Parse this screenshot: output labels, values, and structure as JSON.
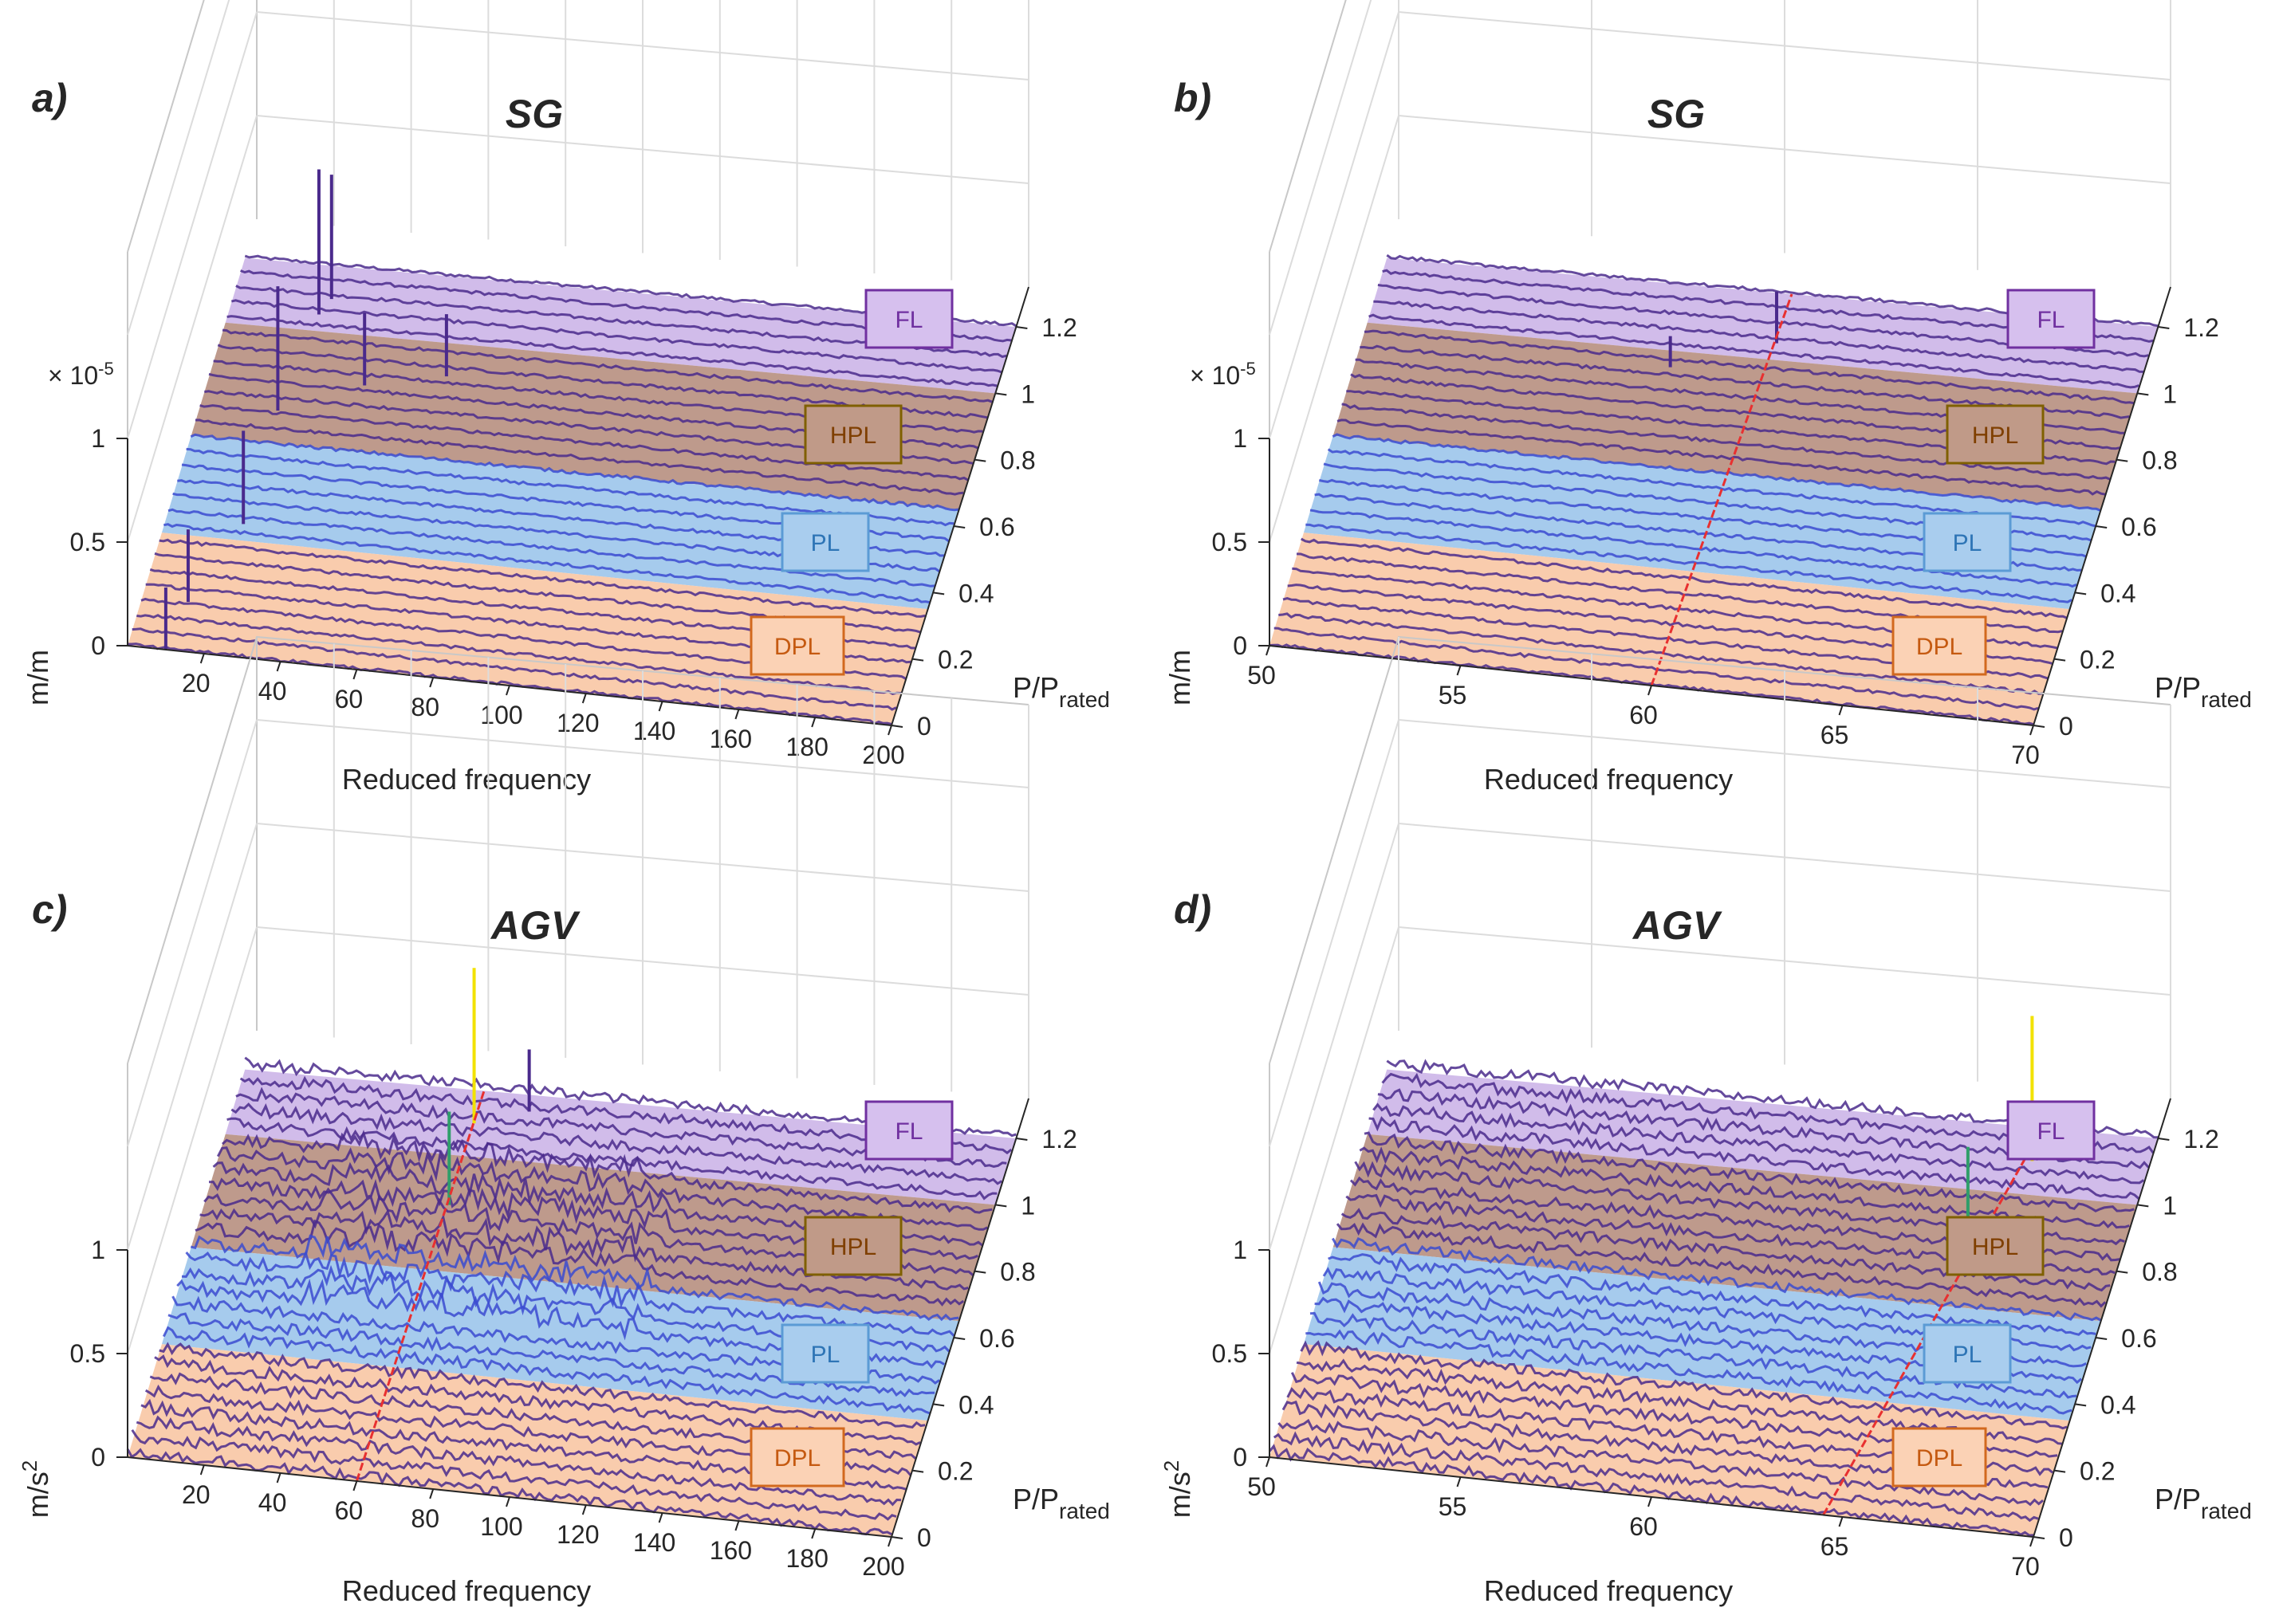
{
  "figure": {
    "panels": [
      {
        "letter": "a)",
        "title": "SG",
        "xrange": "full",
        "ytick_unit": "m/m",
        "exponent": "× 10",
        "exponent_power": "-5"
      },
      {
        "letter": "b)",
        "title": "SG",
        "xrange": "zoom",
        "ytick_unit": "m/m",
        "exponent": "× 10",
        "exponent_power": "-5"
      },
      {
        "letter": "c)",
        "title": "AGV",
        "xrange": "full",
        "ytick_unit": "m/s",
        "ytick_unit_power": "2",
        "exponent": "",
        "exponent_power": ""
      },
      {
        "letter": "d)",
        "title": "AGV",
        "xrange": "zoom",
        "ytick_unit": "m/s",
        "ytick_unit_power": "2",
        "exponent": "",
        "exponent_power": ""
      }
    ],
    "xlabel": "Reduced frequency",
    "ylabel_main": "P/P",
    "ylabel_sub": "rated",
    "x_ticks_full": [
      "20",
      "40",
      "60",
      "80",
      "100",
      "120",
      "140",
      "160",
      "180",
      "200"
    ],
    "x_ticks_zoom": [
      "50",
      "55",
      "60",
      "65",
      "70"
    ],
    "y_ticks": [
      "0",
      "0.2",
      "0.4",
      "0.6",
      "0.8",
      "1",
      "1.2"
    ],
    "z_ticks": [
      "0",
      "0.5",
      "1"
    ],
    "regions": [
      {
        "label": "DPL",
        "fill": "#f9c8a6",
        "edge": "#d2691e",
        "text": "#c55a11",
        "box_fill": "#fbd2b5"
      },
      {
        "label": "PL",
        "fill": "#9ec7ec",
        "edge": "#5b9bd5",
        "text": "#2e75b6",
        "box_fill": "#a9cdee"
      },
      {
        "label": "HPL",
        "fill": "#b89182",
        "edge": "#7f6000",
        "text": "#7f3f00",
        "box_fill": "#c09a88"
      },
      {
        "label": "FL",
        "fill": "#cdb6e8",
        "edge": "#7030a0",
        "text": "#7030a0",
        "box_fill": "#d6c0ee"
      }
    ],
    "colors": {
      "trace": "#4a2a8c",
      "trace_blue": "#3b4bd0",
      "red_line": "#e83030",
      "yellow_spike": "#f2e200",
      "green_spike": "#2f9e6a"
    }
  },
  "chart_data": [
    {
      "type": "waterfall",
      "title": "SG",
      "xlabel": "Reduced frequency",
      "ylabel": "P/Prated",
      "zlabel": "m/m",
      "xlim": [
        0,
        200
      ],
      "ylim": [
        0,
        1.2
      ],
      "zlim": [
        0,
        1
      ],
      "z_exponent": "x10^-5",
      "regions": [
        {
          "name": "DPL",
          "p_range": [
            0,
            0.35
          ]
        },
        {
          "name": "PL",
          "p_range": [
            0.35,
            0.65
          ]
        },
        {
          "name": "HPL",
          "p_range": [
            0.65,
            1.0
          ]
        },
        {
          "name": "FL",
          "p_range": [
            1.0,
            1.2
          ]
        }
      ],
      "notable_peaks": [
        {
          "reduced_frequency": 10,
          "p": 0.0,
          "amplitude": 0.3
        },
        {
          "reduced_frequency": 12,
          "p": 0.15,
          "amplitude": 0.35
        },
        {
          "reduced_frequency": 20,
          "p": 0.4,
          "amplitude": 0.45
        },
        {
          "reduced_frequency": 20,
          "p": 0.75,
          "amplitude": 0.6
        },
        {
          "reduced_frequency": 23,
          "p": 1.05,
          "amplitude": 0.7
        },
        {
          "reduced_frequency": 25,
          "p": 1.1,
          "amplitude": 0.6
        },
        {
          "reduced_frequency": 40,
          "p": 0.85,
          "amplitude": 0.35
        },
        {
          "reduced_frequency": 60,
          "p": 0.9,
          "amplitude": 0.3
        }
      ]
    },
    {
      "type": "waterfall",
      "title": "SG",
      "xlabel": "Reduced frequency",
      "ylabel": "P/Prated",
      "zlabel": "m/m",
      "xlim": [
        50,
        70
      ],
      "ylim": [
        0,
        1.2
      ],
      "zlim": [
        0,
        1
      ],
      "z_exponent": "x10^-5",
      "regions": [
        {
          "name": "DPL",
          "p_range": [
            0,
            0.35
          ]
        },
        {
          "name": "PL",
          "p_range": [
            0.35,
            0.65
          ]
        },
        {
          "name": "HPL",
          "p_range": [
            0.65,
            1.0
          ]
        },
        {
          "name": "FL",
          "p_range": [
            1.0,
            1.2
          ]
        }
      ],
      "red_line": {
        "from": [
          60,
          0
        ],
        "to": [
          60.5,
          1.2
        ]
      },
      "notable_peaks": [
        {
          "reduced_frequency": 60.5,
          "p": 1.05,
          "amplitude": 0.25
        },
        {
          "reduced_frequency": 58,
          "p": 0.95,
          "amplitude": 0.15
        }
      ]
    },
    {
      "type": "waterfall",
      "title": "AGV",
      "xlabel": "Reduced frequency",
      "ylabel": "P/Prated",
      "zlabel": "m/s2",
      "xlim": [
        0,
        200
      ],
      "ylim": [
        0,
        1.2
      ],
      "zlim": [
        0,
        1
      ],
      "regions": [
        {
          "name": "DPL",
          "p_range": [
            0,
            0.35
          ]
        },
        {
          "name": "PL",
          "p_range": [
            0.35,
            0.65
          ]
        },
        {
          "name": "HPL",
          "p_range": [
            0.65,
            1.0
          ]
        },
        {
          "name": "FL",
          "p_range": [
            1.0,
            1.2
          ]
        }
      ],
      "red_line": {
        "from": [
          60,
          0
        ],
        "to": [
          62,
          1.2
        ]
      },
      "notable_peaks": [
        {
          "reduced_frequency": 62,
          "p": 1.1,
          "amplitude": 0.75,
          "color": "yellow"
        },
        {
          "reduced_frequency": 62,
          "p": 0.85,
          "amplitude": 0.45,
          "color": "green"
        },
        {
          "reduced_frequency": 75,
          "p": 1.15,
          "amplitude": 0.3
        }
      ]
    },
    {
      "type": "waterfall",
      "title": "AGV",
      "xlabel": "Reduced frequency",
      "ylabel": "P/Prated",
      "zlabel": "m/s2",
      "xlim": [
        50,
        70
      ],
      "ylim": [
        0,
        1.2
      ],
      "zlim": [
        0,
        1
      ],
      "regions": [
        {
          "name": "DPL",
          "p_range": [
            0,
            0.35
          ]
        },
        {
          "name": "PL",
          "p_range": [
            0.35,
            0.65
          ]
        },
        {
          "name": "HPL",
          "p_range": [
            0.65,
            1.0
          ]
        },
        {
          "name": "FL",
          "p_range": [
            1.0,
            1.2
          ]
        }
      ],
      "red_line": {
        "from": [
          64.5,
          0
        ],
        "to": [
          67,
          1.2
        ]
      },
      "notable_peaks": [
        {
          "reduced_frequency": 67,
          "p": 1.1,
          "amplitude": 0.7,
          "color": "yellow"
        },
        {
          "reduced_frequency": 66,
          "p": 0.85,
          "amplitude": 0.45,
          "color": "green"
        }
      ]
    }
  ]
}
